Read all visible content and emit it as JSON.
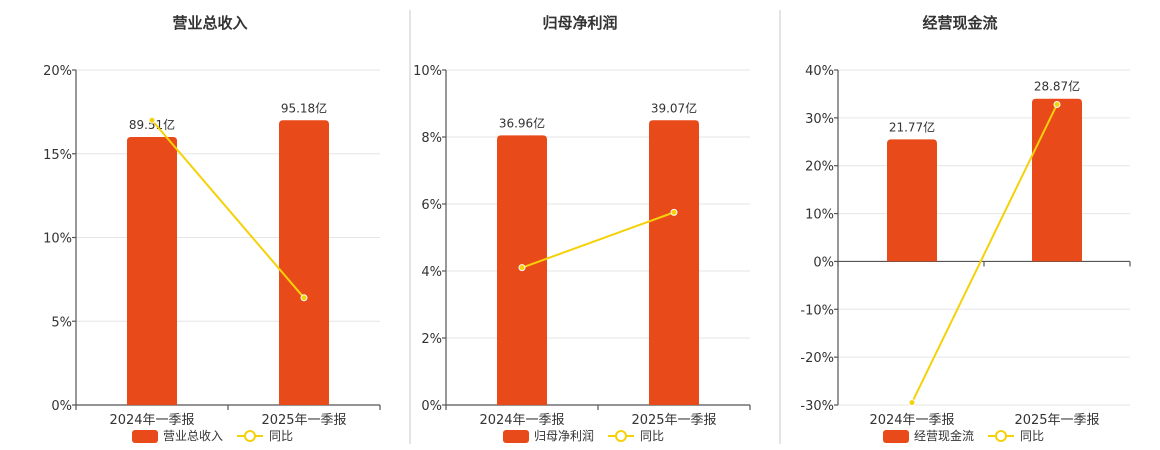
{
  "colors": {
    "bar": "#E84A19",
    "line": "#F5D10A"
  },
  "chart_data": [
    {
      "type": "bar",
      "title": "营业总收入",
      "categories": [
        "2024年一季报",
        "2025年一季报"
      ],
      "y_ticks": [
        "20%",
        "15%",
        "10%",
        "5%",
        "0%"
      ],
      "ylim": [
        0,
        20
      ],
      "series": [
        {
          "name": "营业总收入",
          "type": "bar",
          "labels": [
            "89.51亿",
            "95.18亿"
          ],
          "bar_heights": [
            16.0,
            17.0
          ]
        },
        {
          "name": "同比",
          "type": "line",
          "values": [
            17.0,
            6.4
          ]
        }
      ],
      "legend": "bottom"
    },
    {
      "type": "bar",
      "title": "归母净利润",
      "categories": [
        "2024年一季报",
        "2025年一季报"
      ],
      "y_ticks": [
        "10%",
        "8%",
        "6%",
        "4%",
        "2%",
        "0%"
      ],
      "ylim": [
        0,
        10
      ],
      "series": [
        {
          "name": "归母净利润",
          "type": "bar",
          "labels": [
            "36.96亿",
            "39.07亿"
          ],
          "bar_heights": [
            8.05,
            8.5
          ]
        },
        {
          "name": "同比",
          "type": "line",
          "values": [
            4.1,
            5.75
          ]
        }
      ],
      "legend": "bottom"
    },
    {
      "type": "bar",
      "title": "经营现金流",
      "categories": [
        "2024年一季报",
        "2025年一季报"
      ],
      "y_ticks": [
        "40%",
        "30%",
        "20%",
        "10%",
        "0%",
        "-10%",
        "-20%",
        "-30%"
      ],
      "ylim": [
        -30,
        40
      ],
      "series": [
        {
          "name": "经营现金流",
          "type": "bar",
          "labels": [
            "21.77亿",
            "28.87亿"
          ],
          "bar_heights": [
            25.5,
            34.0
          ]
        },
        {
          "name": "同比",
          "type": "line",
          "values": [
            -29.5,
            32.8
          ]
        }
      ],
      "legend": "bottom"
    }
  ]
}
